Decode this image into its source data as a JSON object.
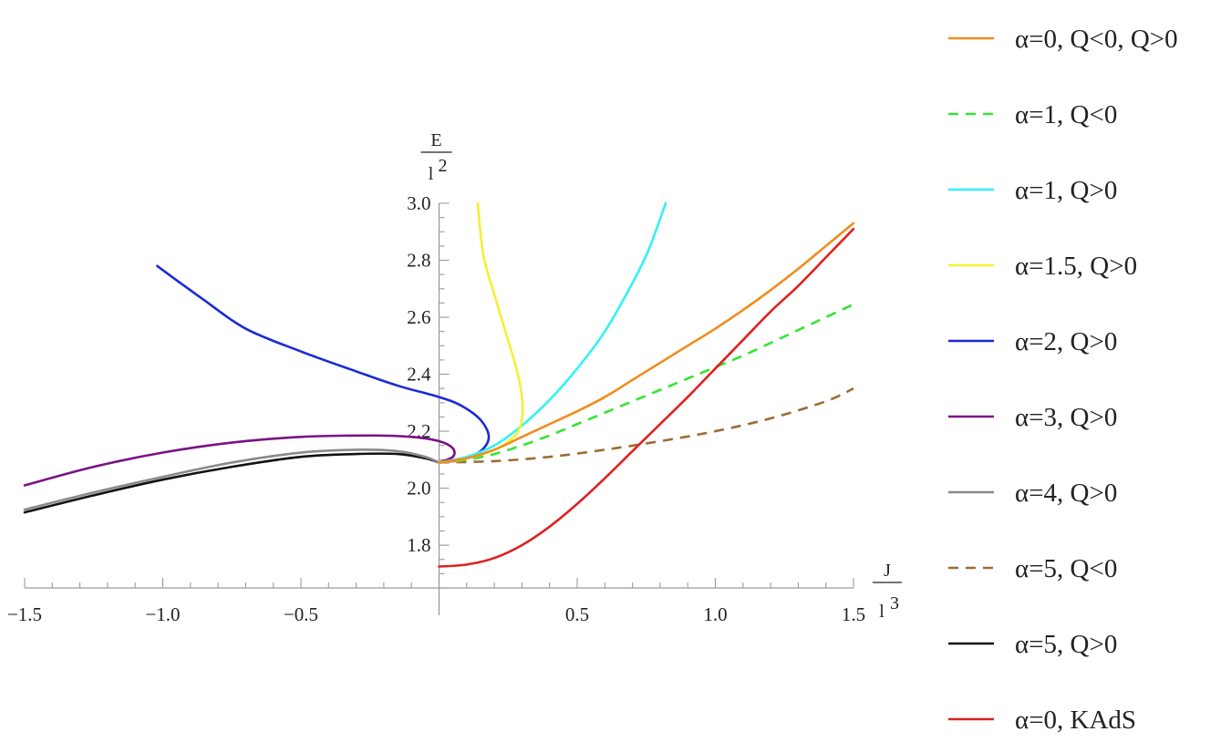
{
  "chart_data": {
    "type": "line",
    "xlim": [
      -1.5,
      1.5
    ],
    "ylim": [
      1.65,
      3.0
    ],
    "x_axis_crosses_y": 1.65,
    "y_axis_crosses_x": 0,
    "x_ticks": [
      -1.5,
      -1.0,
      -0.5,
      0.5,
      1.0,
      1.5
    ],
    "x_tick_labels": [
      "−1.5",
      "−1.0",
      "−0.5",
      "0.5",
      "1.0",
      "1.5"
    ],
    "y_ticks": [
      1.8,
      2.0,
      2.2,
      2.4,
      2.6,
      2.8,
      3.0
    ],
    "y_tick_labels": [
      "1.8",
      "2.0",
      "2.2",
      "2.4",
      "2.6",
      "2.8",
      "3.0"
    ],
    "xlabel": {
      "numerator": "J",
      "denominator_base": "l",
      "denominator_exp": "3"
    },
    "ylabel": {
      "numerator": "E",
      "denominator_base": "l",
      "denominator_exp": "2"
    },
    "grid": false,
    "legend_position": "right",
    "series": [
      {
        "name": "α=0, Q<0, Q>0",
        "color": "#f08c1e",
        "dash": false,
        "points": [
          [
            0.0,
            2.09
          ],
          [
            0.1,
            2.105
          ],
          [
            0.2,
            2.135
          ],
          [
            0.3,
            2.18
          ],
          [
            0.4,
            2.225
          ],
          [
            0.5,
            2.27
          ],
          [
            0.6,
            2.32
          ],
          [
            0.7,
            2.38
          ],
          [
            0.8,
            2.44
          ],
          [
            0.9,
            2.5
          ],
          [
            1.0,
            2.56
          ],
          [
            1.1,
            2.625
          ],
          [
            1.2,
            2.695
          ],
          [
            1.3,
            2.77
          ],
          [
            1.4,
            2.85
          ],
          [
            1.5,
            2.93
          ]
        ]
      },
      {
        "name": "α=1, Q<0",
        "color": "#33e533",
        "dash": true,
        "points": [
          [
            0.0,
            2.09
          ],
          [
            0.1,
            2.1
          ],
          [
            0.2,
            2.12
          ],
          [
            0.3,
            2.15
          ],
          [
            0.4,
            2.185
          ],
          [
            0.5,
            2.225
          ],
          [
            0.6,
            2.265
          ],
          [
            0.7,
            2.305
          ],
          [
            0.8,
            2.345
          ],
          [
            0.9,
            2.385
          ],
          [
            1.0,
            2.425
          ],
          [
            1.1,
            2.465
          ],
          [
            1.2,
            2.51
          ],
          [
            1.3,
            2.555
          ],
          [
            1.4,
            2.6
          ],
          [
            1.5,
            2.645
          ]
        ]
      },
      {
        "name": "α=1, Q>0",
        "color": "#33f2f2",
        "dash": false,
        "points": [
          [
            0.0,
            2.09
          ],
          [
            0.1,
            2.11
          ],
          [
            0.2,
            2.15
          ],
          [
            0.3,
            2.22
          ],
          [
            0.4,
            2.31
          ],
          [
            0.5,
            2.42
          ],
          [
            0.6,
            2.55
          ],
          [
            0.7,
            2.72
          ],
          [
            0.76,
            2.84
          ],
          [
            0.82,
            3.0
          ]
        ]
      },
      {
        "name": "α=1.5, Q>0",
        "color": "#f4f033",
        "dash": false,
        "points": [
          [
            0.0,
            2.09
          ],
          [
            0.08,
            2.1
          ],
          [
            0.16,
            2.12
          ],
          [
            0.23,
            2.15
          ],
          [
            0.28,
            2.19
          ],
          [
            0.3,
            2.24
          ],
          [
            0.3,
            2.32
          ],
          [
            0.28,
            2.42
          ],
          [
            0.24,
            2.55
          ],
          [
            0.2,
            2.68
          ],
          [
            0.16,
            2.82
          ],
          [
            0.14,
            3.0
          ]
        ]
      },
      {
        "name": "α=2, Q>0",
        "color": "#1a2ad6",
        "dash": false,
        "points": [
          [
            0.0,
            2.09
          ],
          [
            0.08,
            2.1
          ],
          [
            0.15,
            2.13
          ],
          [
            0.18,
            2.18
          ],
          [
            0.15,
            2.24
          ],
          [
            0.08,
            2.29
          ],
          [
            0.0,
            2.32
          ],
          [
            -0.15,
            2.36
          ],
          [
            -0.3,
            2.41
          ],
          [
            -0.5,
            2.48
          ],
          [
            -0.7,
            2.56
          ],
          [
            -0.85,
            2.66
          ],
          [
            -0.95,
            2.73
          ],
          [
            -1.02,
            2.78
          ]
        ]
      },
      {
        "name": "α=3, Q>0",
        "color": "#7a1185",
        "dash": false,
        "points": [
          [
            0.0,
            2.09
          ],
          [
            0.05,
            2.11
          ],
          [
            0.05,
            2.14
          ],
          [
            0.0,
            2.165
          ],
          [
            -0.1,
            2.18
          ],
          [
            -0.25,
            2.185
          ],
          [
            -0.5,
            2.18
          ],
          [
            -0.75,
            2.16
          ],
          [
            -1.0,
            2.125
          ],
          [
            -1.25,
            2.075
          ],
          [
            -1.5,
            2.01
          ]
        ]
      },
      {
        "name": "α=4, Q>0",
        "color": "#8a8a8a",
        "dash": false,
        "points": [
          [
            0.0,
            2.09
          ],
          [
            -0.05,
            2.11
          ],
          [
            -0.15,
            2.13
          ],
          [
            -0.3,
            2.135
          ],
          [
            -0.5,
            2.125
          ],
          [
            -0.75,
            2.09
          ],
          [
            -1.0,
            2.04
          ],
          [
            -1.25,
            1.985
          ],
          [
            -1.5,
            1.925
          ]
        ]
      },
      {
        "name": "α=5, Q<0",
        "color": "#9e6b35",
        "dash": true,
        "points": [
          [
            0.0,
            2.09
          ],
          [
            0.2,
            2.095
          ],
          [
            0.4,
            2.11
          ],
          [
            0.6,
            2.135
          ],
          [
            0.8,
            2.165
          ],
          [
            1.0,
            2.2
          ],
          [
            1.2,
            2.245
          ],
          [
            1.4,
            2.305
          ],
          [
            1.5,
            2.35
          ]
        ]
      },
      {
        "name": "α=5, Q>0",
        "color": "#111111",
        "dash": false,
        "points": [
          [
            0.0,
            2.09
          ],
          [
            -0.05,
            2.105
          ],
          [
            -0.15,
            2.12
          ],
          [
            -0.3,
            2.12
          ],
          [
            -0.5,
            2.11
          ],
          [
            -0.75,
            2.075
          ],
          [
            -1.0,
            2.03
          ],
          [
            -1.25,
            1.975
          ],
          [
            -1.5,
            1.915
          ]
        ]
      },
      {
        "name": "α=0, KAdS",
        "color": "#e02020",
        "dash": false,
        "points": [
          [
            0.0,
            1.725
          ],
          [
            0.1,
            1.732
          ],
          [
            0.2,
            1.755
          ],
          [
            0.3,
            1.8
          ],
          [
            0.4,
            1.865
          ],
          [
            0.5,
            1.945
          ],
          [
            0.6,
            2.035
          ],
          [
            0.7,
            2.13
          ],
          [
            0.8,
            2.225
          ],
          [
            0.9,
            2.32
          ],
          [
            1.0,
            2.42
          ],
          [
            1.1,
            2.52
          ],
          [
            1.2,
            2.62
          ],
          [
            1.3,
            2.71
          ],
          [
            1.4,
            2.81
          ],
          [
            1.5,
            2.91
          ]
        ]
      }
    ]
  }
}
